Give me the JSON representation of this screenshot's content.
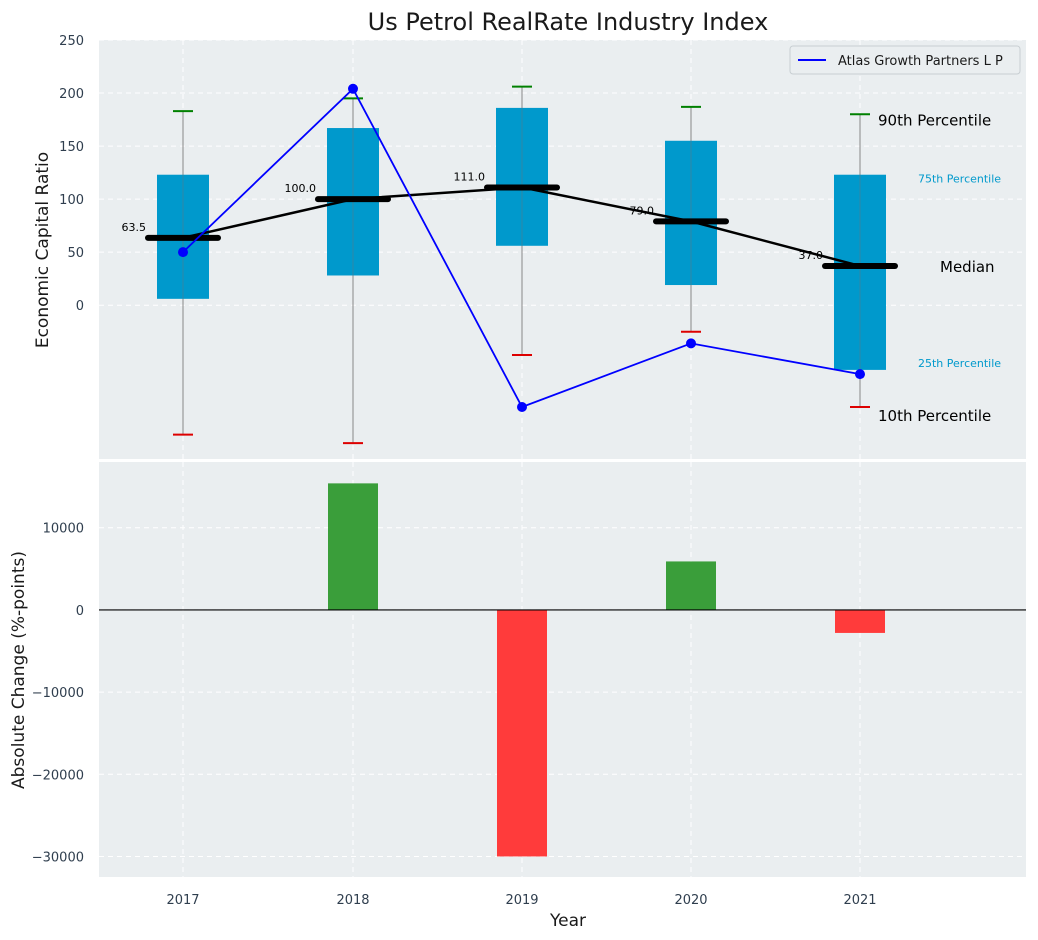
{
  "colors": {
    "panel_bg": "#eaeef0",
    "box": "#0099cc",
    "whisker_top": "#008000",
    "whisker_bottom": "#dd0000",
    "median": "#000000",
    "company_line": "#0000ff",
    "bar_positive": "#3a9e3a",
    "bar_negative": "#ff3b3b",
    "label_blue": "#0099cc"
  },
  "chart_data": [
    {
      "type": "box",
      "title": "Us Petrol RealRate Industry Index",
      "xlabel": "",
      "ylabel": "Economic Capital Ratio",
      "ylim": [
        -145,
        250
      ],
      "yticks": [
        0,
        50,
        100,
        150,
        200,
        250
      ],
      "grid": true,
      "categories": [
        "2017",
        "2018",
        "2019",
        "2020",
        "2021"
      ],
      "percentiles": [
        {
          "year": "2017",
          "p10": -122,
          "p25": 6,
          "median": 63.5,
          "p75": 123,
          "p90": 183
        },
        {
          "year": "2018",
          "p10": -130,
          "p25": 28,
          "median": 100.0,
          "p75": 167,
          "p90": 195
        },
        {
          "year": "2019",
          "p10": -47,
          "p25": 56,
          "median": 111.0,
          "p75": 186,
          "p90": 206
        },
        {
          "year": "2020",
          "p10": -25,
          "p25": 19,
          "median": 79.0,
          "p75": 155,
          "p90": 187
        },
        {
          "year": "2021",
          "p10": -96,
          "p25": -61,
          "median": 37.0,
          "p75": 123,
          "p90": 180
        }
      ],
      "median_labels": [
        "63.5",
        "100.0",
        "111.0",
        "79.0",
        "37.0"
      ],
      "series": [
        {
          "name": "Atlas Growth Partners L P",
          "values": [
            50,
            204,
            -96,
            -36,
            -65
          ]
        }
      ],
      "percentile_labels": {
        "p90": "90th Percentile",
        "p75": "75th Percentile",
        "median": "Median",
        "p25": "25th Percentile",
        "p10": "10th Percentile"
      },
      "legend": {
        "position": "top-right",
        "entries": [
          "Atlas Growth Partners L P"
        ]
      }
    },
    {
      "type": "bar",
      "title": "",
      "xlabel": "Year",
      "ylabel": "Absolute Change (%-points)",
      "ylim": [
        -32500,
        18000
      ],
      "yticks": [
        -30000,
        -20000,
        -10000,
        0,
        10000
      ],
      "ytick_labels": [
        "−30000",
        "−20000",
        "−10000",
        "0",
        "10000"
      ],
      "grid": true,
      "categories": [
        "2017",
        "2018",
        "2019",
        "2020",
        "2021"
      ],
      "values": [
        0,
        15400,
        -30000,
        5900,
        -2800
      ]
    }
  ]
}
